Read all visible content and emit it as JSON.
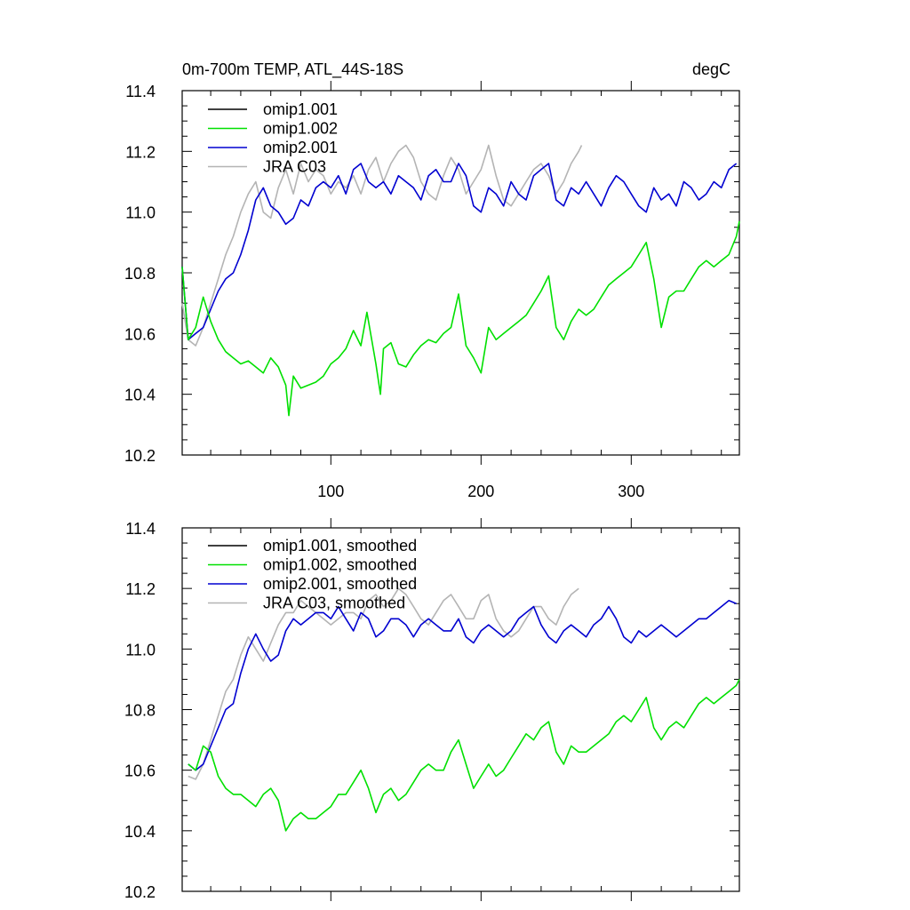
{
  "figure": {
    "title_left": "0m-700m TEMP, ATL_44S-18S",
    "title_right": "degC"
  },
  "chart_data": [
    {
      "type": "line",
      "panel": "top",
      "xlim": [
        1,
        372
      ],
      "ylim": [
        10.2,
        11.4
      ],
      "xticks": [
        100,
        200,
        300
      ],
      "yticks": [
        10.2,
        10.4,
        10.6,
        10.8,
        11.0,
        11.2,
        11.4
      ],
      "ytick_labels": [
        "10.2",
        "10.4",
        "10.6",
        "10.8",
        "11.0",
        "11.2",
        "11.4"
      ],
      "xtick_labels": [
        "100",
        "200",
        "300"
      ],
      "legend_position": "top-left",
      "colors": {
        "omip1.001": "#000000",
        "omip1.002": "#00e000",
        "omip2.001": "#0000d0",
        "JRA C03": "#b4b4b4"
      },
      "series": [
        {
          "name": "omip1.001",
          "x": [],
          "values": []
        },
        {
          "name": "omip1.002",
          "x": [
            1,
            5,
            10,
            15,
            20,
            25,
            30,
            35,
            40,
            45,
            50,
            55,
            60,
            65,
            70,
            72,
            75,
            80,
            85,
            90,
            95,
            100,
            105,
            110,
            115,
            120,
            124,
            130,
            133,
            135,
            140,
            145,
            150,
            155,
            160,
            165,
            170,
            175,
            180,
            185,
            190,
            195,
            200,
            205,
            210,
            215,
            220,
            225,
            230,
            235,
            240,
            245,
            250,
            255,
            260,
            265,
            270,
            275,
            280,
            285,
            290,
            295,
            300,
            305,
            310,
            315,
            320,
            325,
            330,
            335,
            340,
            345,
            350,
            355,
            360,
            365,
            370,
            372
          ],
          "values": [
            10.82,
            10.58,
            10.62,
            10.72,
            10.64,
            10.58,
            10.54,
            10.52,
            10.5,
            10.51,
            10.49,
            10.47,
            10.52,
            10.49,
            10.43,
            10.33,
            10.46,
            10.42,
            10.43,
            10.44,
            10.46,
            10.5,
            10.52,
            10.55,
            10.61,
            10.56,
            10.67,
            10.5,
            10.4,
            10.55,
            10.57,
            10.5,
            10.49,
            10.53,
            10.56,
            10.58,
            10.57,
            10.6,
            10.62,
            10.73,
            10.56,
            10.52,
            10.47,
            10.62,
            10.58,
            10.6,
            10.62,
            10.64,
            10.66,
            10.7,
            10.74,
            10.79,
            10.62,
            10.58,
            10.64,
            10.68,
            10.66,
            10.68,
            10.72,
            10.76,
            10.78,
            10.8,
            10.82,
            10.86,
            10.9,
            10.78,
            10.62,
            10.72,
            10.74,
            10.74,
            10.78,
            10.82,
            10.84,
            10.82,
            10.84,
            10.86,
            10.92,
            10.97
          ]
        },
        {
          "name": "omip2.001",
          "x": [
            1,
            5,
            10,
            15,
            20,
            25,
            30,
            35,
            40,
            45,
            50,
            55,
            60,
            65,
            70,
            75,
            80,
            85,
            90,
            95,
            100,
            105,
            110,
            115,
            120,
            125,
            130,
            135,
            140,
            145,
            150,
            155,
            160,
            165,
            170,
            175,
            180,
            185,
            190,
            195,
            200,
            205,
            210,
            215,
            220,
            225,
            230,
            235,
            240,
            245,
            250,
            255,
            260,
            265,
            270,
            275,
            280,
            285,
            290,
            295,
            300,
            305,
            310,
            315,
            320,
            325,
            330,
            335,
            340,
            345,
            350,
            355,
            360,
            365,
            370
          ],
          "values": [
            10.82,
            10.58,
            10.6,
            10.62,
            10.68,
            10.74,
            10.78,
            10.8,
            10.86,
            10.94,
            11.04,
            11.08,
            11.02,
            11.0,
            10.96,
            10.98,
            11.04,
            11.02,
            11.08,
            11.1,
            11.08,
            11.12,
            11.06,
            11.14,
            11.16,
            11.1,
            11.08,
            11.1,
            11.06,
            11.12,
            11.1,
            11.08,
            11.04,
            11.12,
            11.14,
            11.1,
            11.1,
            11.16,
            11.12,
            11.02,
            11.0,
            11.08,
            11.06,
            11.02,
            11.1,
            11.06,
            11.04,
            11.12,
            11.14,
            11.16,
            11.04,
            11.02,
            11.08,
            11.06,
            11.1,
            11.06,
            11.02,
            11.08,
            11.12,
            11.1,
            11.06,
            11.02,
            11.0,
            11.08,
            11.04,
            11.06,
            11.02,
            11.1,
            11.08,
            11.04,
            11.06,
            11.1,
            11.08,
            11.14,
            11.16
          ]
        },
        {
          "name": "JRA C03",
          "x": [
            1,
            5,
            10,
            15,
            20,
            25,
            30,
            35,
            40,
            45,
            50,
            55,
            60,
            65,
            70,
            75,
            80,
            85,
            90,
            95,
            100,
            105,
            110,
            115,
            120,
            125,
            130,
            135,
            140,
            145,
            150,
            155,
            160,
            165,
            170,
            175,
            180,
            185,
            190,
            195,
            200,
            205,
            210,
            215,
            220,
            225,
            230,
            235,
            240,
            245,
            250,
            255,
            260,
            265,
            267
          ],
          "values": [
            10.7,
            10.58,
            10.56,
            10.62,
            10.7,
            10.78,
            10.86,
            10.92,
            11.0,
            11.06,
            11.1,
            11.0,
            10.98,
            11.08,
            11.14,
            11.06,
            11.16,
            11.1,
            11.14,
            11.12,
            11.06,
            11.1,
            11.08,
            11.12,
            11.06,
            11.14,
            11.18,
            11.1,
            11.16,
            11.2,
            11.22,
            11.18,
            11.1,
            11.06,
            11.04,
            11.12,
            11.18,
            11.14,
            11.06,
            11.1,
            11.14,
            11.22,
            11.12,
            11.04,
            11.02,
            11.06,
            11.1,
            11.14,
            11.16,
            11.12,
            11.06,
            11.1,
            11.16,
            11.2,
            11.22
          ]
        }
      ]
    },
    {
      "type": "line",
      "panel": "bottom",
      "xlim": [
        1,
        372
      ],
      "ylim": [
        10.2,
        11.4
      ],
      "xticks": [
        100,
        200,
        300
      ],
      "yticks": [
        10.2,
        10.4,
        10.6,
        10.8,
        11.0,
        11.2,
        11.4
      ],
      "ytick_labels": [
        "10.2",
        "10.4",
        "10.6",
        "10.8",
        "11.0",
        "11.2",
        "11.4"
      ],
      "legend_position": "top-left",
      "colors": {
        "omip1.001, smoothed": "#000000",
        "omip1.002, smoothed": "#00e000",
        "omip2.001, smoothed": "#0000d0",
        "JRA C03, smoothed": "#b4b4b4"
      },
      "series": [
        {
          "name": "omip1.001, smoothed",
          "x": [],
          "values": []
        },
        {
          "name": "omip1.002, smoothed",
          "x": [
            5,
            10,
            15,
            20,
            25,
            30,
            35,
            40,
            45,
            50,
            55,
            60,
            65,
            70,
            75,
            80,
            85,
            90,
            95,
            100,
            105,
            110,
            115,
            120,
            125,
            130,
            135,
            140,
            145,
            150,
            155,
            160,
            165,
            170,
            175,
            180,
            185,
            190,
            195,
            200,
            205,
            210,
            215,
            220,
            225,
            230,
            235,
            240,
            245,
            250,
            255,
            260,
            265,
            270,
            275,
            280,
            285,
            290,
            295,
            300,
            305,
            310,
            315,
            320,
            325,
            330,
            335,
            340,
            345,
            350,
            355,
            360,
            365,
            370,
            372
          ],
          "values": [
            10.62,
            10.6,
            10.68,
            10.66,
            10.58,
            10.54,
            10.52,
            10.52,
            10.5,
            10.48,
            10.52,
            10.54,
            10.5,
            10.4,
            10.44,
            10.46,
            10.44,
            10.44,
            10.46,
            10.48,
            10.52,
            10.52,
            10.56,
            10.6,
            10.54,
            10.46,
            10.52,
            10.54,
            10.5,
            10.52,
            10.56,
            10.6,
            10.62,
            10.6,
            10.6,
            10.66,
            10.7,
            10.62,
            10.54,
            10.58,
            10.62,
            10.58,
            10.6,
            10.64,
            10.68,
            10.72,
            10.7,
            10.74,
            10.76,
            10.66,
            10.62,
            10.68,
            10.66,
            10.66,
            10.68,
            10.7,
            10.72,
            10.76,
            10.78,
            10.76,
            10.8,
            10.84,
            10.74,
            10.7,
            10.74,
            10.76,
            10.74,
            10.78,
            10.82,
            10.84,
            10.82,
            10.84,
            10.86,
            10.88,
            10.9
          ]
        },
        {
          "name": "omip2.001, smoothed",
          "x": [
            5,
            10,
            15,
            20,
            25,
            30,
            35,
            40,
            45,
            50,
            55,
            60,
            65,
            70,
            75,
            80,
            85,
            90,
            95,
            100,
            105,
            110,
            115,
            120,
            125,
            130,
            135,
            140,
            145,
            150,
            155,
            160,
            165,
            170,
            175,
            180,
            185,
            190,
            195,
            200,
            205,
            210,
            215,
            220,
            225,
            230,
            235,
            240,
            245,
            250,
            255,
            260,
            265,
            270,
            275,
            280,
            285,
            290,
            295,
            300,
            305,
            310,
            315,
            320,
            325,
            330,
            335,
            340,
            345,
            350,
            355,
            360,
            365,
            370
          ],
          "values": [
            10.62,
            10.6,
            10.62,
            10.68,
            10.74,
            10.8,
            10.82,
            10.92,
            11.0,
            11.05,
            11.0,
            10.96,
            10.98,
            11.06,
            11.1,
            11.08,
            11.1,
            11.12,
            11.12,
            11.1,
            11.14,
            11.1,
            11.06,
            11.12,
            11.1,
            11.04,
            11.06,
            11.1,
            11.1,
            11.08,
            11.04,
            11.08,
            11.1,
            11.08,
            11.06,
            11.06,
            11.1,
            11.04,
            11.02,
            11.06,
            11.08,
            11.06,
            11.04,
            11.06,
            11.1,
            11.12,
            11.14,
            11.08,
            11.04,
            11.02,
            11.06,
            11.08,
            11.06,
            11.04,
            11.08,
            11.1,
            11.14,
            11.1,
            11.04,
            11.02,
            11.06,
            11.04,
            11.06,
            11.08,
            11.06,
            11.04,
            11.06,
            11.08,
            11.1,
            11.1,
            11.12,
            11.14,
            11.16,
            11.15
          ]
        },
        {
          "name": "JRA C03, smoothed",
          "x": [
            5,
            10,
            15,
            20,
            25,
            30,
            35,
            40,
            45,
            50,
            55,
            60,
            65,
            70,
            75,
            80,
            85,
            90,
            95,
            100,
            105,
            110,
            115,
            120,
            125,
            130,
            135,
            140,
            145,
            150,
            155,
            160,
            165,
            170,
            175,
            180,
            185,
            190,
            195,
            200,
            205,
            210,
            215,
            220,
            225,
            230,
            235,
            240,
            245,
            250,
            255,
            260,
            265
          ],
          "values": [
            10.58,
            10.57,
            10.62,
            10.7,
            10.78,
            10.86,
            10.9,
            10.98,
            11.04,
            11.0,
            10.96,
            11.02,
            11.08,
            11.12,
            11.12,
            11.16,
            11.14,
            11.12,
            11.1,
            11.08,
            11.1,
            11.12,
            11.12,
            11.1,
            11.16,
            11.18,
            11.14,
            11.16,
            11.2,
            11.18,
            11.14,
            11.1,
            11.08,
            11.12,
            11.16,
            11.18,
            11.14,
            11.1,
            11.1,
            11.16,
            11.18,
            11.1,
            11.06,
            11.04,
            11.06,
            11.1,
            11.14,
            11.14,
            11.1,
            11.08,
            11.14,
            11.18,
            11.2
          ]
        }
      ]
    }
  ]
}
